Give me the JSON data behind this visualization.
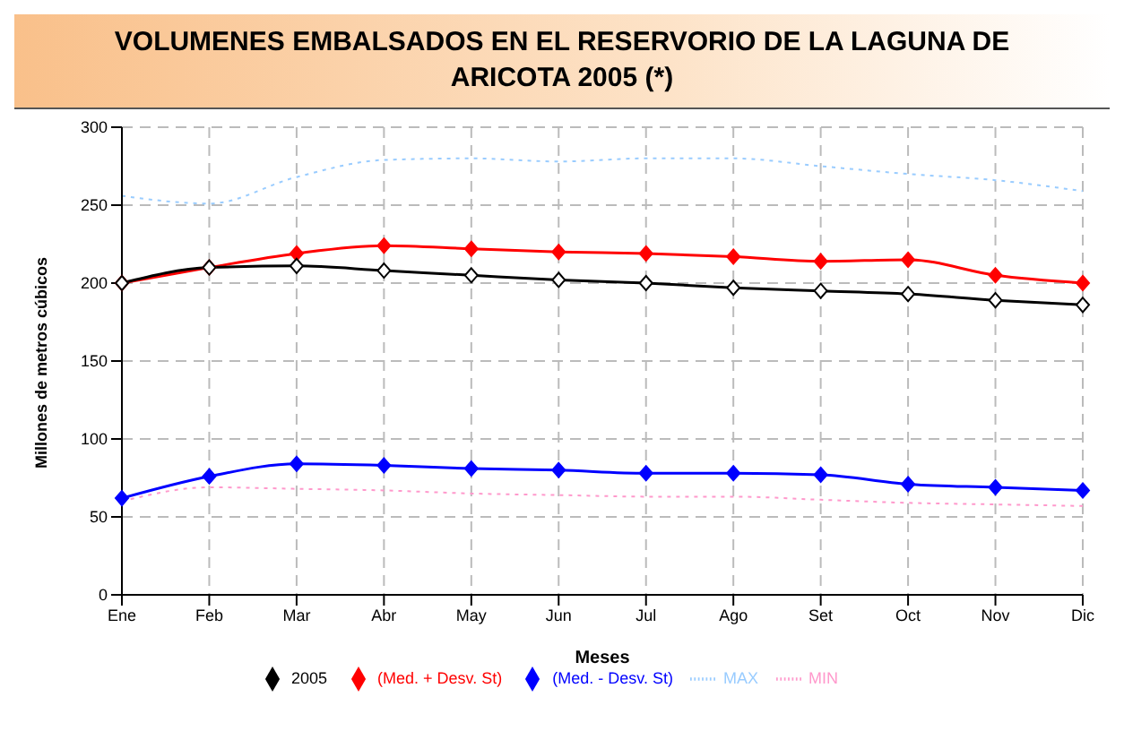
{
  "chart_data": {
    "type": "line",
    "title": "VOLUMENES EMBALSADOS EN EL RESERVORIO DE LA LAGUNA DE ARICOTA 2005 (*)",
    "xlabel": "Meses",
    "ylabel": "Millones de metros cúbicos",
    "categories": [
      "Ene",
      "Feb",
      "Mar",
      "Abr",
      "May",
      "Jun",
      "Jul",
      "Ago",
      "Set",
      "Oct",
      "Nov",
      "Dic"
    ],
    "series": [
      {
        "name": "2005",
        "color": "#000000",
        "marker": "diamond",
        "line_style": "solid",
        "values": [
          200,
          210,
          211,
          208,
          205,
          202,
          200,
          197,
          195,
          193,
          189,
          186
        ]
      },
      {
        "name": "(Med. + Desv. St)",
        "color": "#ff0000",
        "marker": "diamond",
        "line_style": "solid",
        "values": [
          200,
          210,
          219,
          224,
          222,
          220,
          219,
          217,
          214,
          215,
          205,
          200
        ]
      },
      {
        "name": "(Med. - Desv. St)",
        "color": "#0000ff",
        "marker": "diamond",
        "line_style": "solid",
        "values": [
          62,
          76,
          84,
          83,
          81,
          80,
          78,
          78,
          77,
          71,
          69,
          67
        ]
      },
      {
        "name": "MAX",
        "color": "#99ccff",
        "marker": "none",
        "line_style": "dotted",
        "values": [
          256,
          251,
          268,
          279,
          280,
          278,
          280,
          280,
          275,
          270,
          266,
          259
        ]
      },
      {
        "name": "MIN",
        "color": "#ff99cc",
        "marker": "none",
        "line_style": "dotted",
        "values": [
          60,
          69,
          68,
          67,
          65,
          64,
          63,
          63,
          61,
          59,
          58,
          57
        ]
      }
    ],
    "ylim": [
      0,
      300
    ],
    "yticks": [
      0,
      50,
      100,
      150,
      200,
      250,
      300
    ],
    "grid": true,
    "legend": "bottom"
  }
}
